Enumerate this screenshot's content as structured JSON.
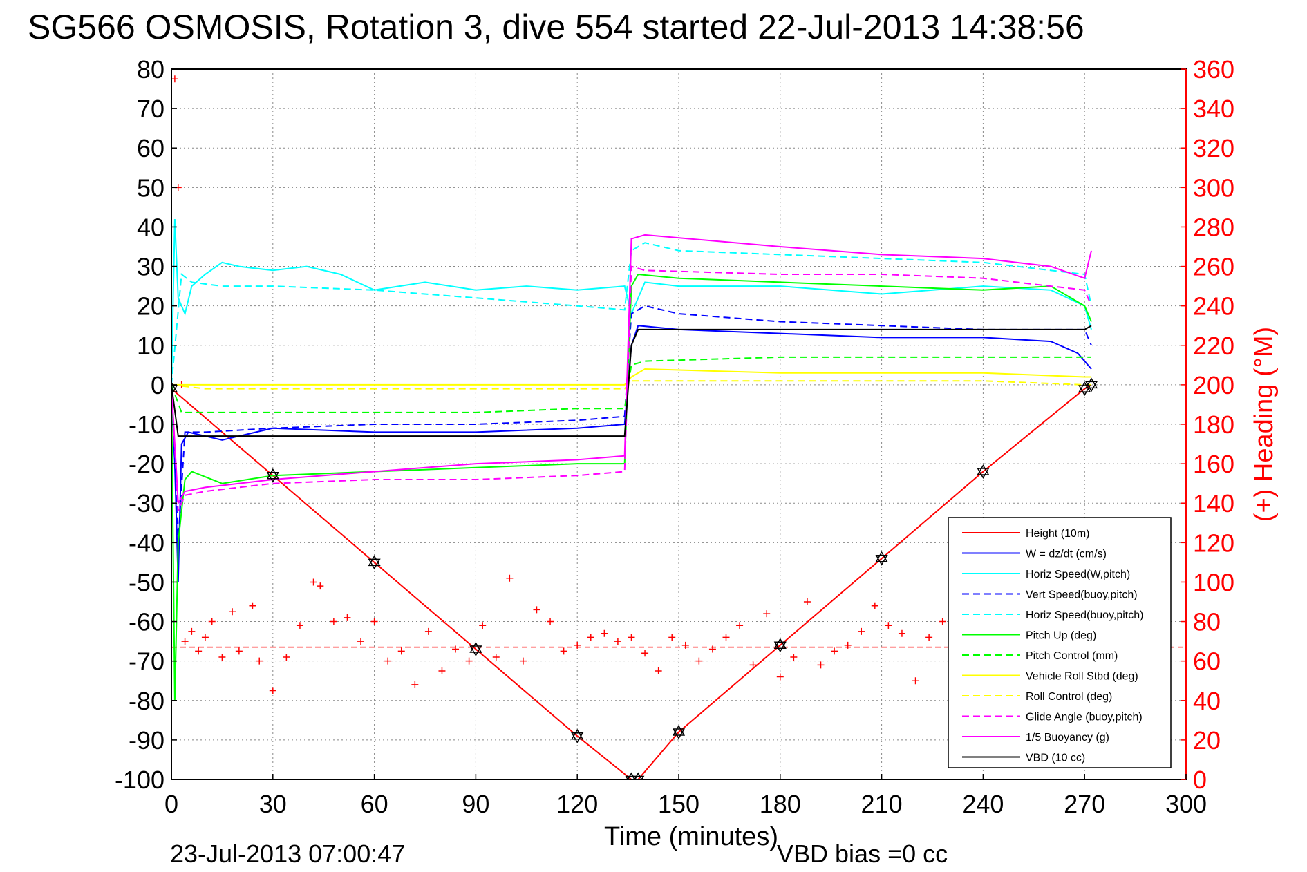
{
  "title": "SG566 OSMOSIS, Rotation 3, dive 554 started 22-Jul-2013 14:38:56",
  "footer": {
    "timestamp": "23-Jul-2013 07:00:47",
    "vbd_bias": "VBD bias =0 cc"
  },
  "chart_data": {
    "type": "line",
    "xlabel": "Time (minutes)",
    "ylabel_right": "(+) Heading (°M)",
    "xlim": [
      0,
      300
    ],
    "ylim": [
      -100,
      80
    ],
    "ylim_right": [
      0,
      360
    ],
    "xticks": [
      0,
      30,
      60,
      90,
      120,
      150,
      180,
      210,
      240,
      270,
      300
    ],
    "yticks": [
      80,
      70,
      60,
      50,
      40,
      30,
      20,
      10,
      0,
      -10,
      -20,
      -30,
      -40,
      -50,
      -60,
      -70,
      -80,
      -90,
      -100
    ],
    "yticks_right": [
      360,
      340,
      320,
      300,
      280,
      260,
      240,
      220,
      200,
      180,
      160,
      140,
      120,
      100,
      80,
      60,
      40,
      20,
      0
    ],
    "grid": true,
    "legend_position": "bottom-right",
    "colors": {
      "right_axis": "#ff0000",
      "height": "#ff0000",
      "w": "#0000ff",
      "horiz_speed": "#00ffff",
      "pitch": "#00ff00",
      "roll": "#ffff00",
      "glide": "#ff00ff",
      "vbd": "#000000"
    },
    "series": [
      {
        "name": "Height (10m)",
        "color": "#ff0000",
        "style": "solid",
        "marker": "hexagram",
        "x": [
          0,
          30,
          60,
          90,
          120,
          136,
          138,
          150,
          180,
          210,
          240,
          270,
          272
        ],
        "y": [
          -1,
          -23,
          -45,
          -67,
          -89,
          -100,
          -100,
          -88,
          -66,
          -44,
          -22,
          -1,
          0
        ]
      },
      {
        "name": "W = dz/dt (cm/s)",
        "color": "#0000ff",
        "style": "solid",
        "x": [
          0,
          1,
          2,
          3,
          5,
          15,
          30,
          60,
          90,
          120,
          134,
          136,
          138,
          150,
          180,
          210,
          240,
          260,
          268,
          272
        ],
        "y": [
          0,
          -20,
          -50,
          -15,
          -12,
          -14,
          -11,
          -12,
          -12,
          -11,
          -10,
          10,
          15,
          14,
          13,
          12,
          12,
          11,
          8,
          4
        ]
      },
      {
        "name": "Horiz Speed(W,pitch)",
        "color": "#00ffff",
        "style": "solid",
        "x": [
          0,
          1,
          2,
          4,
          6,
          10,
          15,
          20,
          30,
          40,
          50,
          60,
          75,
          90,
          105,
          120,
          134,
          136,
          140,
          150,
          180,
          210,
          240,
          260,
          270,
          272
        ],
        "y": [
          0,
          42,
          22,
          18,
          25,
          28,
          31,
          30,
          29,
          30,
          28,
          24,
          26,
          24,
          25,
          24,
          25,
          18,
          26,
          25,
          25,
          23,
          25,
          24,
          20,
          14
        ]
      },
      {
        "name": "Vert Speed(buoy,pitch)",
        "color": "#0000ff",
        "style": "dashed",
        "x": [
          0,
          2,
          4,
          10,
          30,
          60,
          90,
          120,
          134,
          136,
          140,
          150,
          180,
          210,
          240,
          270,
          272
        ],
        "y": [
          0,
          -40,
          -12,
          -12,
          -11,
          -10,
          -10,
          -9,
          -8,
          18,
          20,
          18,
          16,
          15,
          14,
          14,
          10
        ]
      },
      {
        "name": "Horiz Speed(buoy,pitch)",
        "color": "#00ffff",
        "style": "dashed",
        "x": [
          0,
          3,
          6,
          15,
          30,
          60,
          90,
          120,
          134,
          136,
          140,
          150,
          180,
          210,
          240,
          270,
          272
        ],
        "y": [
          0,
          28,
          26,
          25,
          25,
          24,
          22,
          20,
          19,
          34,
          36,
          34,
          33,
          32,
          31,
          28,
          20
        ]
      },
      {
        "name": "Pitch Up (deg)",
        "color": "#00ff00",
        "style": "solid",
        "x": [
          0,
          1,
          2,
          4,
          6,
          15,
          30,
          60,
          90,
          120,
          134,
          136,
          138,
          150,
          180,
          210,
          240,
          260,
          270,
          272
        ],
        "y": [
          0,
          -80,
          -40,
          -24,
          -22,
          -25,
          -23,
          -22,
          -21,
          -20,
          -20,
          25,
          28,
          27,
          26,
          25,
          24,
          25,
          20,
          16
        ]
      },
      {
        "name": "Pitch Control (mm)",
        "color": "#00ff00",
        "style": "dashed",
        "x": [
          0,
          3,
          10,
          30,
          60,
          90,
          120,
          134,
          136,
          140,
          180,
          210,
          240,
          270,
          272
        ],
        "y": [
          0,
          -7,
          -7,
          -7,
          -7,
          -7,
          -6,
          -6,
          5,
          6,
          7,
          7,
          7,
          7,
          7
        ]
      },
      {
        "name": "Vehicle Roll Stbd (deg)",
        "color": "#ffff00",
        "style": "solid",
        "x": [
          0,
          5,
          10,
          30,
          60,
          90,
          120,
          134,
          136,
          140,
          180,
          210,
          240,
          270,
          272
        ],
        "y": [
          0,
          0,
          0,
          0,
          0,
          0,
          0,
          0,
          2,
          4,
          3,
          3,
          3,
          2,
          2
        ]
      },
      {
        "name": "Roll Control (deg)",
        "color": "#ffff00",
        "style": "dashed",
        "x": [
          0,
          10,
          30,
          60,
          90,
          120,
          134,
          136,
          180,
          210,
          240,
          270,
          272
        ],
        "y": [
          0,
          -1,
          -1,
          -1,
          -1,
          -1,
          -1,
          1,
          1,
          1,
          1,
          0,
          0
        ]
      },
      {
        "name": "Glide Angle (buoy,pitch)",
        "color": "#ff00ff",
        "style": "dashed",
        "x": [
          0,
          2,
          4,
          10,
          30,
          60,
          90,
          120,
          134,
          136,
          140,
          180,
          210,
          240,
          270,
          272
        ],
        "y": [
          0,
          -32,
          -28,
          -27,
          -25,
          -24,
          -24,
          -23,
          -22,
          30,
          29,
          28,
          28,
          27,
          24,
          20
        ]
      },
      {
        "name": "1/5 Buoyancy (g)",
        "color": "#ff00ff",
        "style": "solid",
        "x": [
          0,
          2,
          4,
          10,
          30,
          60,
          90,
          120,
          134,
          136,
          140,
          180,
          210,
          240,
          260,
          270,
          272
        ],
        "y": [
          0,
          -30,
          -27,
          -26,
          -24,
          -22,
          -20,
          -19,
          -18,
          37,
          38,
          35,
          33,
          32,
          30,
          27,
          34
        ]
      },
      {
        "name": "VBD (10 cc)",
        "color": "#000000",
        "style": "solid",
        "x": [
          0,
          2,
          4,
          10,
          30,
          60,
          90,
          120,
          134,
          136,
          138,
          150,
          180,
          210,
          240,
          270,
          272
        ],
        "y": [
          0,
          -13,
          -13,
          -13,
          -13,
          -13,
          -13,
          -13,
          -13,
          10,
          14,
          14,
          14,
          14,
          14,
          14,
          15
        ]
      }
    ],
    "heading": {
      "axis": "right",
      "color": "#ff0000",
      "marker": "+",
      "mean": 67,
      "x": [
        1,
        2,
        3,
        4,
        6,
        8,
        10,
        12,
        15,
        18,
        20,
        24,
        26,
        30,
        34,
        38,
        42,
        44,
        48,
        52,
        56,
        60,
        64,
        68,
        72,
        76,
        80,
        84,
        88,
        92,
        96,
        100,
        104,
        108,
        112,
        116,
        120,
        124,
        128,
        132,
        136,
        140,
        144,
        148,
        152,
        156,
        160,
        164,
        168,
        172,
        176,
        180,
        184,
        188,
        192,
        196,
        200,
        204,
        208,
        212,
        216,
        220,
        224,
        228,
        232,
        236,
        240,
        244,
        248,
        252,
        256,
        260,
        264,
        268
      ],
      "y": [
        355,
        300,
        200,
        70,
        75,
        65,
        72,
        80,
        62,
        85,
        65,
        88,
        60,
        45,
        62,
        78,
        100,
        98,
        80,
        82,
        70,
        80,
        60,
        65,
        48,
        75,
        55,
        66,
        60,
        78,
        62,
        102,
        60,
        86,
        80,
        65,
        68,
        72,
        74,
        70,
        72,
        64,
        55,
        72,
        68,
        60,
        66,
        72,
        78,
        58,
        84,
        52,
        62,
        90,
        58,
        65,
        68,
        75,
        88,
        78,
        74,
        50,
        72,
        80,
        60,
        80,
        75,
        78,
        70,
        68,
        75,
        80,
        70,
        72
      ]
    }
  }
}
